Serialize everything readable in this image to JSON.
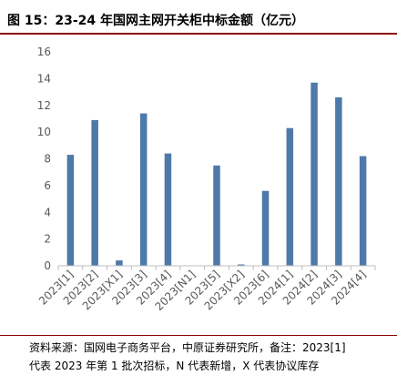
{
  "figure": {
    "title": "图 15：23-24 年国网主网开关柜中标金额（亿元）",
    "source_line1": "资料来源：国网电子商务平台，中原证券研究所，备注：2023[1]",
    "source_line2": "代表 2023 年第 1 批次招标，N 代表新增，X 代表协议库存"
  },
  "colors": {
    "bar": "#4e79a8",
    "title_rule": "#8b0000",
    "axis": "#bfbfbf",
    "text": "#595959"
  },
  "chart_data": {
    "type": "bar",
    "title": "",
    "xlabel": "",
    "ylabel": "",
    "categories": [
      "2023[1]",
      "2023[2]",
      "2023[X1]",
      "2023[3]",
      "2023[4]",
      "2023[N1]",
      "2023[5]",
      "2023[X2]",
      "2023[6]",
      "2024[1]",
      "2024[2]",
      "2024[3]",
      "2024[4]"
    ],
    "values": [
      8.3,
      10.9,
      0.4,
      11.4,
      8.4,
      0,
      7.5,
      0.1,
      5.6,
      10.3,
      13.7,
      12.6,
      8.2
    ],
    "ylim": [
      0,
      16
    ],
    "yticks": [
      0,
      2,
      4,
      6,
      8,
      10,
      12,
      14,
      16
    ],
    "grid": false,
    "legend": "none"
  }
}
